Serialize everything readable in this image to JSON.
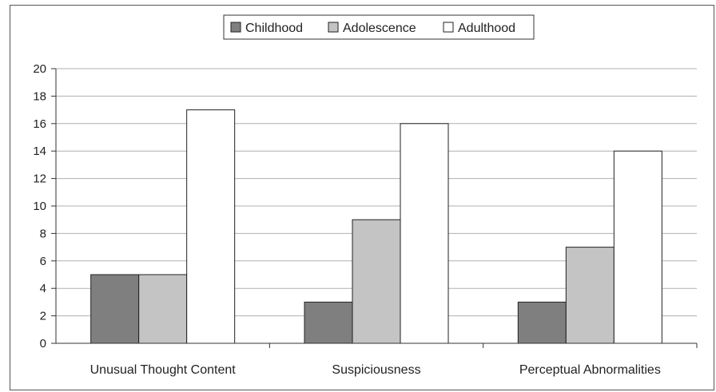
{
  "chart_data": {
    "type": "bar",
    "categories": [
      "Unusual Thought Content",
      "Suspiciousness",
      "Perceptual Abnormalities"
    ],
    "series": [
      {
        "name": "Childhood",
        "values": [
          5,
          3,
          3
        ],
        "color": "#7f7f7f"
      },
      {
        "name": "Adolescence",
        "values": [
          5,
          9,
          7
        ],
        "color": "#c4c4c4"
      },
      {
        "name": "Adulthood",
        "values": [
          17,
          16,
          14
        ],
        "color": "#ffffff"
      }
    ],
    "title": "",
    "xlabel": "",
    "ylabel": "",
    "ylim": [
      0,
      20
    ],
    "yticks": [
      0,
      2,
      4,
      6,
      8,
      10,
      12,
      14,
      16,
      18,
      20
    ],
    "grid": true,
    "legend_position": "top-center"
  }
}
